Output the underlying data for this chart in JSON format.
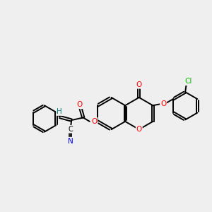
{
  "bg_color": "#efefef",
  "bond_color": "#000000",
  "bond_width": 1.4,
  "atom_colors": {
    "O": "#ff0000",
    "N": "#0000ff",
    "Cl": "#00bb00",
    "H": "#008080",
    "C": "#000000"
  },
  "figsize": [
    3.0,
    3.0
  ],
  "dpi": 100
}
